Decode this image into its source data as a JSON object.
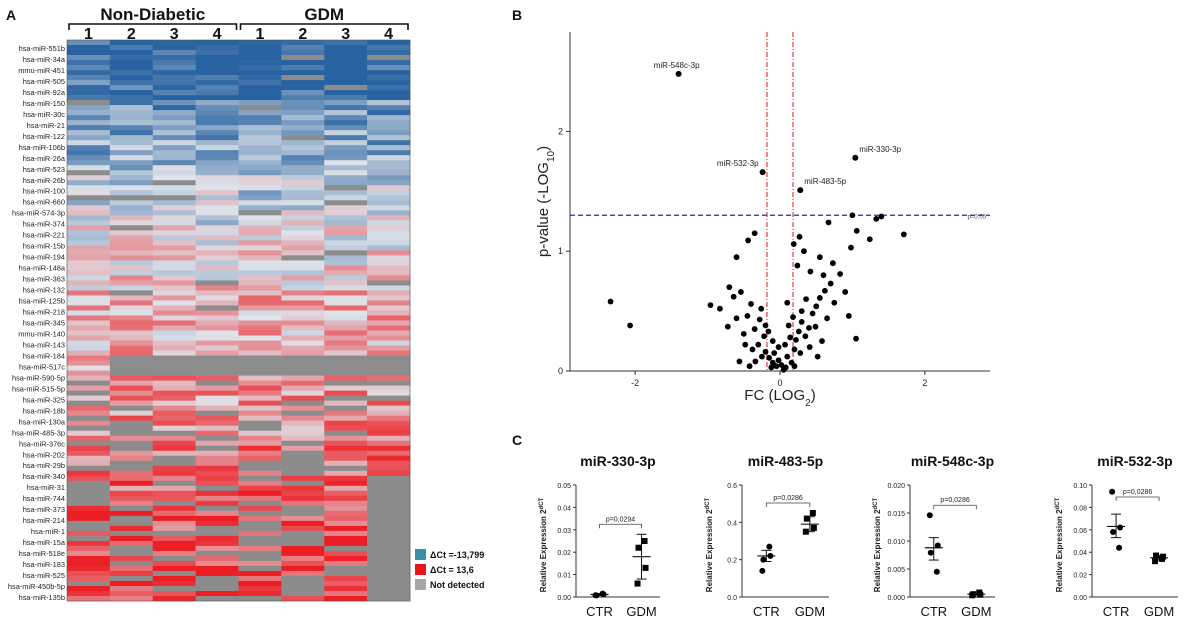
{
  "panel_labels": {
    "a": "A",
    "b": "B",
    "c": "C"
  },
  "chart_data": [
    {
      "type": "heatmap",
      "panel": "A",
      "group_labels": [
        "Non-Diabetic",
        "GDM"
      ],
      "column_labels": [
        "1",
        "2",
        "3",
        "4",
        "1",
        "2",
        "3",
        "4"
      ],
      "row_labels": [
        "hsa-miR-551b",
        "hsa-miR-34a",
        "mmu-miR-451",
        "hsa-miR-505",
        "hsa-miR-92a",
        "hsa-miR-150",
        "hsa-miR-30c",
        "hsa-miR-21",
        "hsa-miR-122",
        "hsa-miR-106b",
        "hsa-miR-26a",
        "hsa-miR-523",
        "hsa-miR-26b",
        "hsa-miR-100",
        "hsa-miR-660",
        "hsa-miR-574-3p",
        "hsa-miR-374",
        "hsa-miR-221",
        "hsa-miR-15b",
        "hsa-miR-194",
        "hsa-miR-148a",
        "hsa-miR-363",
        "hsa-miR-132",
        "hsa-miR-125b",
        "hsa-miR-218",
        "hsa-miR-345",
        "mmu-miR-140",
        "hsa-miR-143",
        "hsa-miR-184",
        "hsa-miR-517c",
        "hsa-miR-590-5p",
        "hsa-miR-515-5p",
        "hsa-miR-325",
        "hsa-miR-18b",
        "hsa-miR-130a",
        "hsa-miR-485-3p",
        "hsa-miR-376c",
        "hsa-miR-202",
        "hsa-miR-29b",
        "hsa-miR-340",
        "hsa-miR-31",
        "hsa-miR-744",
        "hsa-miR-373",
        "hsa-miR-214",
        "hsa-miR-1",
        "hsa-miR-15a",
        "hsa-miR-518e",
        "hsa-miR-183",
        "hsa-miR-525",
        "hsa-miR-450b-5p",
        "hsa-miR-135b"
      ],
      "legend": [
        {
          "label": "ΔCt =-13,799",
          "color": "#3a8fa3"
        },
        {
          "label": "ΔCt = 13,6",
          "color": "#e8141e"
        },
        {
          "label": "Not detected",
          "color": "#a6a6a6"
        }
      ]
    },
    {
      "type": "scatter",
      "panel": "B",
      "xlabel": "FC (LOG",
      "xlabel_sub": "2",
      "xlabel_end": ")",
      "ylabel": "p-value (-LOG",
      "ylabel_sub": "10",
      "ylabel_end": ")",
      "xlim": [
        -2.9,
        2.9
      ],
      "ylim": [
        0,
        2.83
      ],
      "xticks": [
        -2,
        0,
        2
      ],
      "yticks": [
        0,
        1,
        2
      ],
      "xtick_labels": [
        "-2",
        "0",
        "2"
      ],
      "ytick_labels": [
        "0",
        "1",
        "2"
      ],
      "threshold_y": 1.3,
      "threshold_label": "p=0.05",
      "fc_lines": [
        -0.18,
        0.18
      ],
      "labeled_points": [
        {
          "label": "miR-548c-3p",
          "x": -1.4,
          "y": 2.48
        },
        {
          "label": "miR-330-3p",
          "x": 1.04,
          "y": 1.78
        },
        {
          "label": "miR-532-3p",
          "x": -0.24,
          "y": 1.66
        },
        {
          "label": "miR-483-5p",
          "x": 0.28,
          "y": 1.51
        }
      ],
      "points": [
        [
          1.0,
          1.3
        ],
        [
          1.33,
          1.27
        ],
        [
          1.4,
          1.29
        ],
        [
          1.06,
          1.17
        ],
        [
          1.24,
          1.1
        ],
        [
          0.67,
          1.24
        ],
        [
          0.98,
          1.03
        ],
        [
          1.71,
          1.14
        ],
        [
          -0.35,
          1.15
        ],
        [
          -0.44,
          1.09
        ],
        [
          -0.6,
          0.95
        ],
        [
          -2.34,
          0.58
        ],
        [
          -2.07,
          0.38
        ],
        [
          -0.96,
          0.55
        ],
        [
          -0.7,
          0.7
        ],
        [
          -0.83,
          0.52
        ],
        [
          -0.64,
          0.62
        ],
        [
          -0.4,
          0.56
        ],
        [
          -0.54,
          0.66
        ],
        [
          -0.45,
          0.46
        ],
        [
          -0.72,
          0.37
        ],
        [
          -0.5,
          0.31
        ],
        [
          -0.35,
          0.35
        ],
        [
          -0.28,
          0.43
        ],
        [
          -0.22,
          0.29
        ],
        [
          -0.3,
          0.22
        ],
        [
          -0.2,
          0.16
        ],
        [
          -0.15,
          0.11
        ],
        [
          -0.1,
          0.07
        ],
        [
          -0.05,
          0.04
        ],
        [
          -0.12,
          0.03
        ],
        [
          -0.25,
          0.12
        ],
        [
          -0.38,
          0.18
        ],
        [
          -0.2,
          0.38
        ],
        [
          -0.6,
          0.44
        ],
        [
          -0.48,
          0.22
        ],
        [
          -0.34,
          0.08
        ],
        [
          -0.08,
          0.15
        ],
        [
          -0.02,
          0.09
        ],
        [
          0.05,
          0.01
        ],
        [
          0.02,
          0.05
        ],
        [
          0.08,
          0.03
        ],
        [
          0.1,
          0.12
        ],
        [
          0.16,
          0.07
        ],
        [
          0.2,
          0.18
        ],
        [
          0.22,
          0.26
        ],
        [
          0.26,
          0.33
        ],
        [
          0.3,
          0.41
        ],
        [
          0.35,
          0.29
        ],
        [
          0.4,
          0.36
        ],
        [
          0.45,
          0.48
        ],
        [
          0.5,
          0.54
        ],
        [
          0.55,
          0.61
        ],
        [
          0.62,
          0.67
        ],
        [
          0.7,
          0.73
        ],
        [
          0.36,
          0.6
        ],
        [
          0.42,
          0.83
        ],
        [
          0.24,
          0.88
        ],
        [
          0.33,
          1.0
        ],
        [
          0.27,
          1.12
        ],
        [
          0.19,
          1.06
        ],
        [
          0.55,
          0.95
        ],
        [
          0.83,
          0.81
        ],
        [
          0.73,
          0.9
        ],
        [
          0.6,
          0.8
        ],
        [
          0.75,
          0.57
        ],
        [
          0.9,
          0.66
        ],
        [
          0.49,
          0.37
        ],
        [
          0.58,
          0.25
        ],
        [
          0.65,
          0.44
        ],
        [
          0.28,
          0.15
        ],
        [
          0.14,
          0.28
        ],
        [
          0.3,
          0.5
        ],
        [
          0.18,
          0.45
        ],
        [
          0.12,
          0.38
        ],
        [
          0.41,
          0.2
        ],
        [
          0.52,
          0.12
        ],
        [
          0.2,
          0.04
        ],
        [
          1.05,
          0.27
        ],
        [
          0.95,
          0.46
        ],
        [
          0.1,
          0.57
        ],
        [
          0.07,
          0.22
        ],
        [
          -0.02,
          0.2
        ],
        [
          -0.1,
          0.25
        ],
        [
          -0.16,
          0.33
        ],
        [
          -0.42,
          0.04
        ],
        [
          -0.26,
          0.52
        ],
        [
          -0.56,
          0.08
        ]
      ]
    },
    {
      "type": "scatter",
      "panel": "C",
      "title": "miR-330-3p",
      "ylabel": "Relative Expression 2",
      "ylabel_sup": "dCT",
      "categories": [
        "CTR",
        "GDM"
      ],
      "ylim": [
        0,
        0.05
      ],
      "yticks": [
        0,
        0.01,
        0.02,
        0.03,
        0.04,
        0.05
      ],
      "ytick_labels": [
        "0.00",
        "0.01",
        "0.02",
        "0.03",
        "0.04",
        "0.05"
      ],
      "pvalue": "p=0,0294",
      "series": [
        {
          "name": "CTR",
          "values": [
            0.0008,
            0.0012,
            0.0007,
            0.0015
          ],
          "mean": 0.0011,
          "sem_low": 0.0007,
          "sem_high": 0.0015
        },
        {
          "name": "GDM",
          "values": [
            0.006,
            0.013,
            0.022,
            0.025
          ],
          "mean": 0.018,
          "sem_low": 0.008,
          "sem_high": 0.028
        }
      ]
    },
    {
      "type": "scatter",
      "panel": "C",
      "title": "miR-483-5p",
      "ylabel": "Relative Expression 2",
      "ylabel_sup": "dCT",
      "categories": [
        "CTR",
        "GDM"
      ],
      "ylim": [
        0,
        0.6
      ],
      "yticks": [
        0,
        0.2,
        0.4,
        0.6
      ],
      "ytick_labels": [
        "0.0",
        "0.2",
        "0.4",
        "0.6"
      ],
      "pvalue": "p=0,0286",
      "series": [
        {
          "name": "CTR",
          "values": [
            0.14,
            0.22,
            0.2,
            0.27
          ],
          "mean": 0.22,
          "sem_low": 0.19,
          "sem_high": 0.25
        },
        {
          "name": "GDM",
          "values": [
            0.35,
            0.37,
            0.42,
            0.45
          ],
          "mean": 0.39,
          "sem_low": 0.35,
          "sem_high": 0.43
        }
      ]
    },
    {
      "type": "scatter",
      "panel": "C",
      "title": "miR-548c-3p",
      "ylabel": "Relative Expression 2",
      "ylabel_sup": "dCT",
      "categories": [
        "CTR",
        "GDM"
      ],
      "ylim": [
        0,
        0.02
      ],
      "yticks": [
        0,
        0.005,
        0.01,
        0.015,
        0.02
      ],
      "ytick_labels": [
        "0.000",
        "0.005",
        "0.010",
        "0.015",
        "0.020"
      ],
      "pvalue": "p=0,0286",
      "series": [
        {
          "name": "CTR",
          "values": [
            0.0146,
            0.0092,
            0.0079,
            0.0045
          ],
          "mean": 0.0088,
          "sem_low": 0.0066,
          "sem_high": 0.0106
        },
        {
          "name": "GDM",
          "values": [
            0.0003,
            0.0004,
            0.0005,
            0.0008
          ],
          "mean": 0.0005,
          "sem_low": 0.0004,
          "sem_high": 0.0006
        }
      ]
    },
    {
      "type": "scatter",
      "panel": "C",
      "title": "miR-532-3p",
      "ylabel": "Relative Expression 2",
      "ylabel_sup": "dCT",
      "categories": [
        "CTR",
        "GDM"
      ],
      "ylim": [
        0,
        0.1
      ],
      "yticks": [
        0,
        0.02,
        0.04,
        0.06,
        0.08,
        0.1
      ],
      "ytick_labels": [
        "0.00",
        "0.02",
        "0.04",
        "0.06",
        "0.08",
        "0.10"
      ],
      "pvalue": "p=0,0286",
      "series": [
        {
          "name": "CTR",
          "values": [
            0.094,
            0.062,
            0.058,
            0.044
          ],
          "mean": 0.063,
          "sem_low": 0.053,
          "sem_high": 0.074
        },
        {
          "name": "GDM",
          "values": [
            0.032,
            0.036,
            0.037,
            0.034
          ],
          "mean": 0.035,
          "sem_low": 0.033,
          "sem_high": 0.037
        }
      ]
    }
  ]
}
